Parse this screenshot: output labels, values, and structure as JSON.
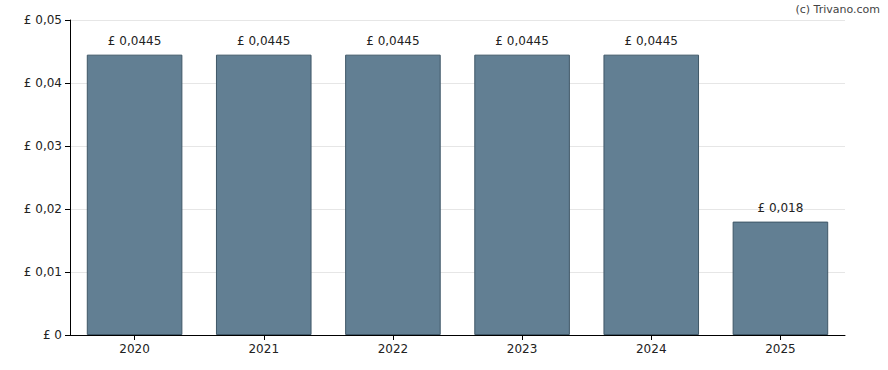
{
  "chart_data": {
    "type": "bar",
    "annotations": [
      "(c) Trivano.com"
    ],
    "categories": [
      "2020",
      "2021",
      "2022",
      "2023",
      "2024",
      "2025"
    ],
    "values": [
      0.0445,
      0.0445,
      0.0445,
      0.0445,
      0.0445,
      0.018
    ],
    "value_labels": [
      "£ 0,0445",
      "£ 0,0445",
      "£ 0,0445",
      "£ 0,0445",
      "£ 0,0445",
      "£ 0,018"
    ],
    "data_labels": true,
    "color": "#627f93",
    "ylim": [
      0,
      0.05
    ],
    "yticks": [
      {
        "value": 0,
        "label": "£ 0"
      },
      {
        "value": 0.01,
        "label": "£ 0,01"
      },
      {
        "value": 0.02,
        "label": "£ 0,02"
      },
      {
        "value": 0.03,
        "label": "£ 0,03"
      },
      {
        "value": 0.04,
        "label": "£ 0,04"
      },
      {
        "value": 0.05,
        "label": "£ 0,05"
      }
    ],
    "grid": true
  }
}
